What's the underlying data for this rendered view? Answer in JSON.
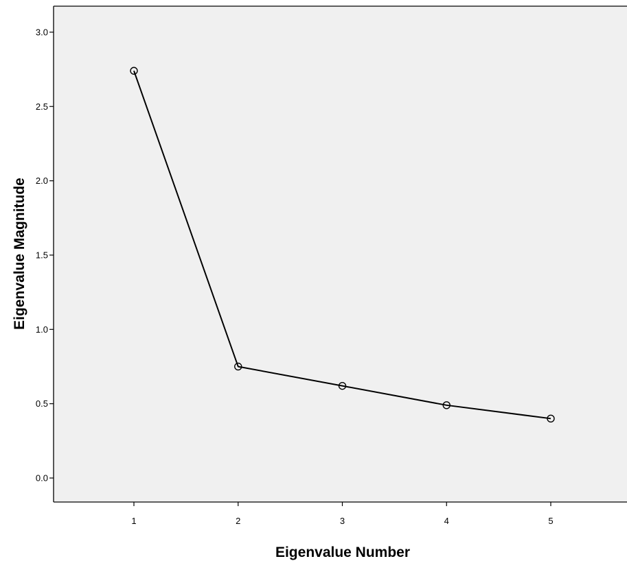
{
  "chart_data": {
    "type": "line",
    "xlabel": "Eigenvalue Number",
    "ylabel": "Eigenvalue Magnitude",
    "x": [
      1,
      2,
      3,
      4,
      5
    ],
    "series": [
      {
        "values": [
          2.74,
          0.75,
          0.62,
          0.49,
          0.4
        ]
      }
    ],
    "xticks": [
      "1",
      "2",
      "3",
      "4",
      "5"
    ],
    "yticks": [
      "0.0",
      "0.5",
      "1.0",
      "1.5",
      "2.0",
      "2.5",
      "3.0"
    ],
    "ytick_values": [
      0.0,
      0.5,
      1.0,
      1.5,
      2.0,
      2.5,
      3.0
    ],
    "grid": false,
    "marker": "open-circle",
    "colors": {
      "plot_background": "#f0f0f0",
      "line": "#000000",
      "frame": "#000000"
    }
  }
}
